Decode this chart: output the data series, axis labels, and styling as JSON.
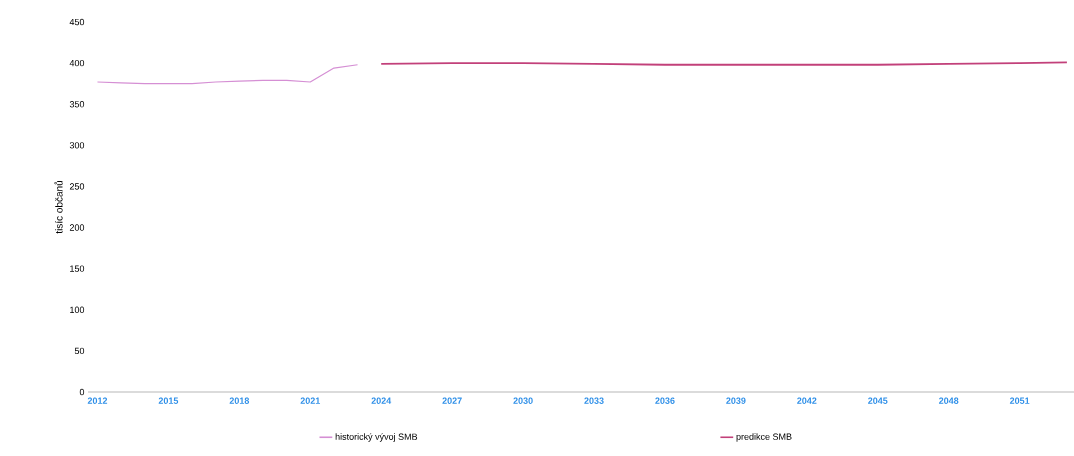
{
  "chart_data": {
    "type": "line",
    "ylabel": "tisíc občanů",
    "series": [
      {
        "name": "historický vývoj SMB",
        "color": "#d58fd4",
        "x": [
          2012,
          2013,
          2014,
          2015,
          2016,
          2017,
          2018,
          2019,
          2020,
          2021,
          2022,
          2023
        ],
        "values": [
          377,
          376,
          375,
          375,
          375,
          377,
          378,
          379,
          379,
          377,
          394,
          398
        ]
      },
      {
        "name": "predikce SMB",
        "color": "#c2407a",
        "x": [
          2024,
          2027,
          2030,
          2033,
          2036,
          2039,
          2042,
          2045,
          2048,
          2051,
          2053
        ],
        "values": [
          399,
          400,
          400,
          399,
          398,
          398,
          398,
          398,
          399,
          400,
          401
        ]
      }
    ],
    "xlim": [
      2011.6,
      2053.3
    ],
    "ylim": [
      0,
      450
    ],
    "xticks": [
      2012,
      2015,
      2018,
      2021,
      2024,
      2027,
      2030,
      2033,
      2036,
      2039,
      2042,
      2045,
      2048,
      2051
    ],
    "yticks": [
      0,
      50,
      100,
      150,
      200,
      250,
      300,
      350,
      400,
      450
    ],
    "legend": "bottom"
  }
}
